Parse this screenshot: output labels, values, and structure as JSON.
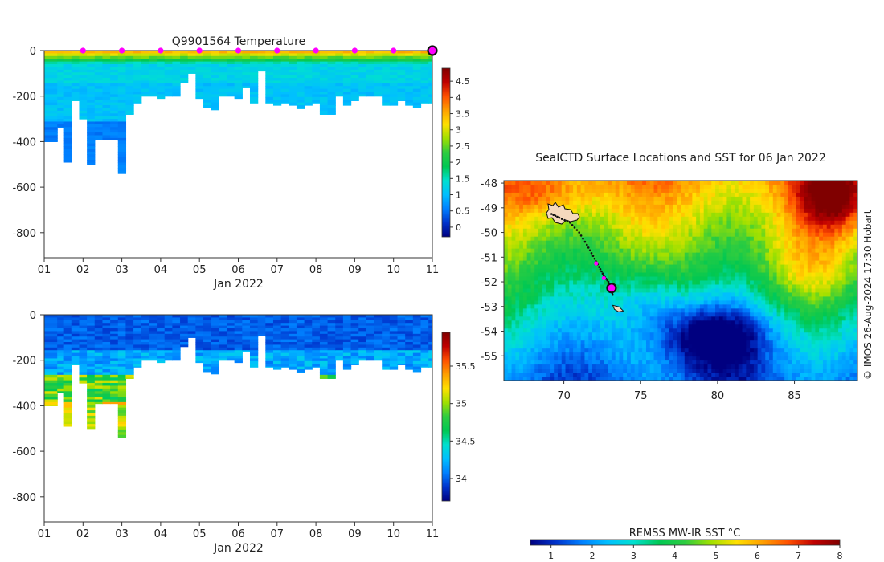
{
  "chart_data": [
    {
      "type": "heatmap",
      "name": "temperature-section",
      "title": "Q9901564  Temperature",
      "xlabel": "Jan 2022",
      "ylabel": "",
      "x_tick_labels": [
        "01",
        "02",
        "03",
        "04",
        "05",
        "06",
        "07",
        "08",
        "09",
        "10",
        "11"
      ],
      "x_range_days": [
        1,
        11
      ],
      "y_ticks": [
        0,
        -200,
        -400,
        -600,
        -800
      ],
      "y_tick_labels": [
        "0",
        "-200",
        "-400",
        "-600",
        "-800"
      ],
      "ylim": [
        -910,
        0
      ],
      "colorbar": {
        "range": [
          -0.3,
          4.9
        ],
        "ticks": [
          0,
          0.5,
          1,
          1.5,
          2,
          2.5,
          3,
          3.5,
          4,
          4.5
        ],
        "tick_labels": [
          "0",
          "0.5",
          "1",
          "1.5",
          "2",
          "2.5",
          "3",
          "3.5",
          "4",
          "4.5"
        ],
        "colors": [
          "#000080",
          "#0033cc",
          "#0080ff",
          "#00bfff",
          "#00e0d0",
          "#00c853",
          "#2ecc40",
          "#a0e000",
          "#ffe000",
          "#ffa000",
          "#ff5000",
          "#c00000",
          "#800000"
        ]
      },
      "profile_times_days": [
        1.25,
        1.42,
        1.6,
        1.8,
        2.0,
        2.2,
        2.4,
        2.6,
        2.8,
        3.0,
        3.2,
        3.4,
        3.6,
        3.8,
        4.0,
        4.2,
        4.4,
        4.6,
        4.8,
        5.0,
        5.2,
        5.4,
        5.6,
        5.8,
        6.0,
        6.2,
        6.4,
        6.6,
        6.8,
        7.0,
        7.2,
        7.4,
        7.6,
        7.8,
        8.0,
        8.2,
        8.4,
        8.6,
        8.8,
        9.0,
        9.2,
        9.4,
        9.6,
        9.8,
        10.0,
        10.2,
        10.4,
        10.6,
        10.8,
        11.0
      ],
      "profile_max_depths_m": [
        400,
        340,
        490,
        220,
        300,
        500,
        390,
        390,
        390,
        540,
        280,
        230,
        200,
        200,
        210,
        200,
        200,
        140,
        100,
        210,
        250,
        260,
        200,
        200,
        210,
        160,
        230,
        90,
        230,
        240,
        230,
        240,
        255,
        240,
        230,
        280,
        280,
        200,
        240,
        220,
        200,
        200,
        200,
        240,
        240,
        220,
        240,
        250,
        230,
        230
      ],
      "surface_markers_days": [
        2,
        3,
        4,
        5,
        6,
        7,
        8,
        9,
        10
      ],
      "current_position_day": 11
    },
    {
      "type": "heatmap",
      "name": "salinity-section",
      "title": "",
      "xlabel": "Jan 2022",
      "x_tick_labels": [
        "01",
        "02",
        "03",
        "04",
        "05",
        "06",
        "07",
        "08",
        "09",
        "10",
        "11"
      ],
      "x_range_days": [
        1,
        11
      ],
      "y_ticks": [
        0,
        -200,
        -400,
        -600,
        -800
      ],
      "y_tick_labels": [
        "0",
        "-200",
        "-400",
        "-600",
        "-800"
      ],
      "ylim": [
        -910,
        0
      ],
      "colorbar": {
        "range": [
          33.7,
          35.95
        ],
        "ticks": [
          34,
          34.5,
          35,
          35.5
        ],
        "tick_labels": [
          "34",
          "34.5",
          "35",
          "35.5"
        ],
        "colors": [
          "#000080",
          "#0033cc",
          "#0080ff",
          "#00bfff",
          "#00e0d0",
          "#00c853",
          "#2ecc40",
          "#a0e000",
          "#ffe000",
          "#ffa000",
          "#ff5000",
          "#c00000",
          "#800000"
        ]
      }
    },
    {
      "type": "heatmap",
      "name": "sst-map",
      "title": "SealCTD Surface Locations and SST for 06 Jan 2022",
      "x_tick_labels": [
        "70",
        "75",
        "80",
        "85"
      ],
      "x_ticks": [
        70,
        75,
        80,
        85
      ],
      "xlim": [
        66.1,
        89.1
      ],
      "y_tick_labels": [
        "-48",
        "-49",
        "-50",
        "-51",
        "-52",
        "-53",
        "-54",
        "-55"
      ],
      "y_ticks": [
        -48,
        -49,
        -50,
        -51,
        -52,
        -53,
        -54,
        -55
      ],
      "ylim": [
        -56.0,
        -47.9
      ],
      "track": {
        "lon": [
          69.2,
          69.7,
          70.4,
          71.0,
          71.5,
          71.9,
          72.3,
          72.6,
          72.9,
          73.1,
          73.2
        ],
        "lat": [
          -49.25,
          -49.4,
          -49.6,
          -50.0,
          -50.5,
          -50.95,
          -51.4,
          -51.75,
          -52.0,
          -52.3,
          -52.6
        ]
      },
      "track_markers": [
        {
          "lon": 72.1,
          "lat": -51.25
        },
        {
          "lon": 72.6,
          "lat": -51.85
        }
      ],
      "current_position": {
        "lon": 73.1,
        "lat": -52.25
      },
      "colorbar": {
        "label": "REMSS MW-IR SST °C",
        "range": [
          0.5,
          8.0
        ],
        "ticks": [
          1,
          2,
          3,
          4,
          5,
          6,
          7,
          8
        ],
        "tick_labels": [
          "1",
          "2",
          "3",
          "4",
          "5",
          "6",
          "7",
          "8"
        ],
        "colors": [
          "#000080",
          "#0033cc",
          "#0080ff",
          "#00bfff",
          "#00e0d0",
          "#00c853",
          "#2ecc40",
          "#a0e000",
          "#ffe000",
          "#ffa000",
          "#ff5000",
          "#c00000",
          "#800000"
        ]
      },
      "credit": "© IMOS 26-Aug-2024 17:30 Hobart"
    }
  ]
}
